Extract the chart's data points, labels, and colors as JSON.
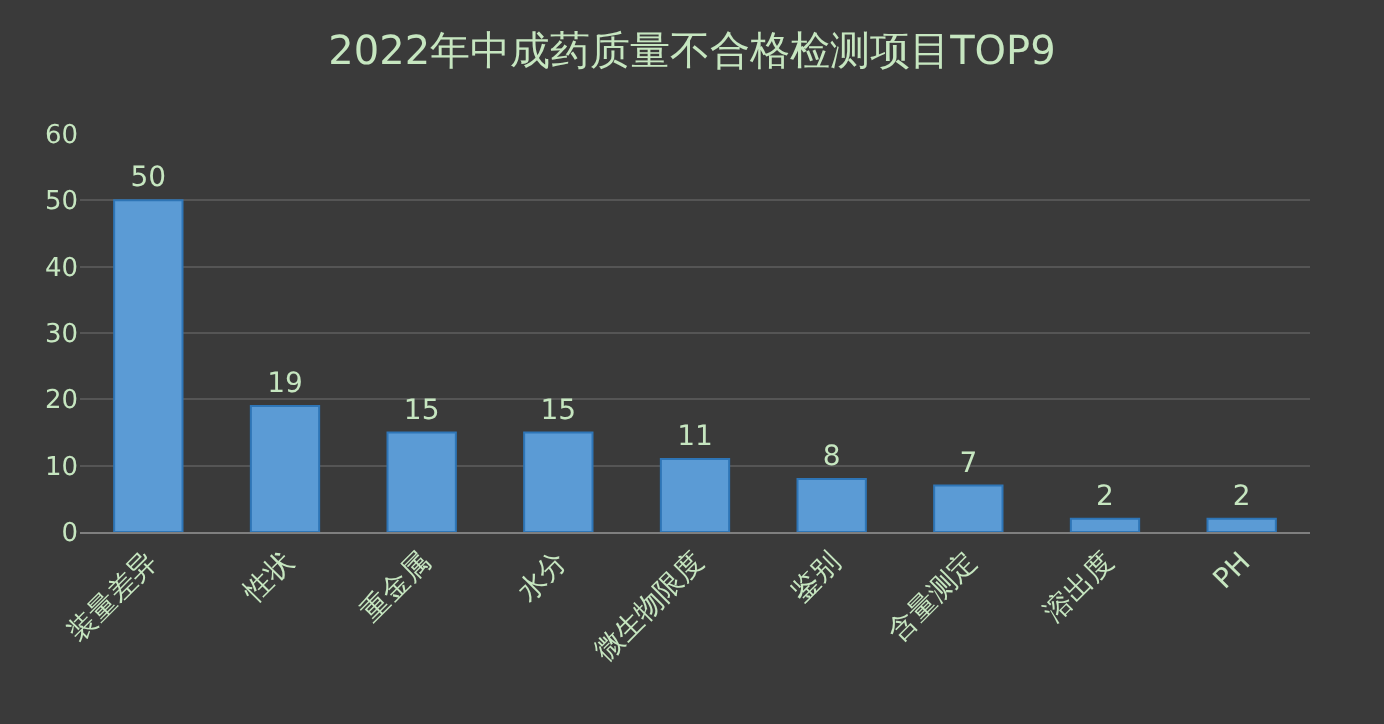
{
  "chart_data": {
    "type": "bar",
    "title": "2022年中成药质量不合格检测项目TOP9",
    "categories": [
      "装量差异",
      "性状",
      "重金属",
      "水分",
      "微生物限度",
      "鉴别",
      "含量测定",
      "溶出度",
      "PH"
    ],
    "values": [
      50,
      19,
      15,
      15,
      11,
      8,
      7,
      2,
      2
    ],
    "color": "#5b9bd5",
    "ylim": [
      0,
      60
    ],
    "yticks": [
      0,
      10,
      20,
      30,
      40,
      50,
      60
    ],
    "grid": "y",
    "data_labels": true
  }
}
